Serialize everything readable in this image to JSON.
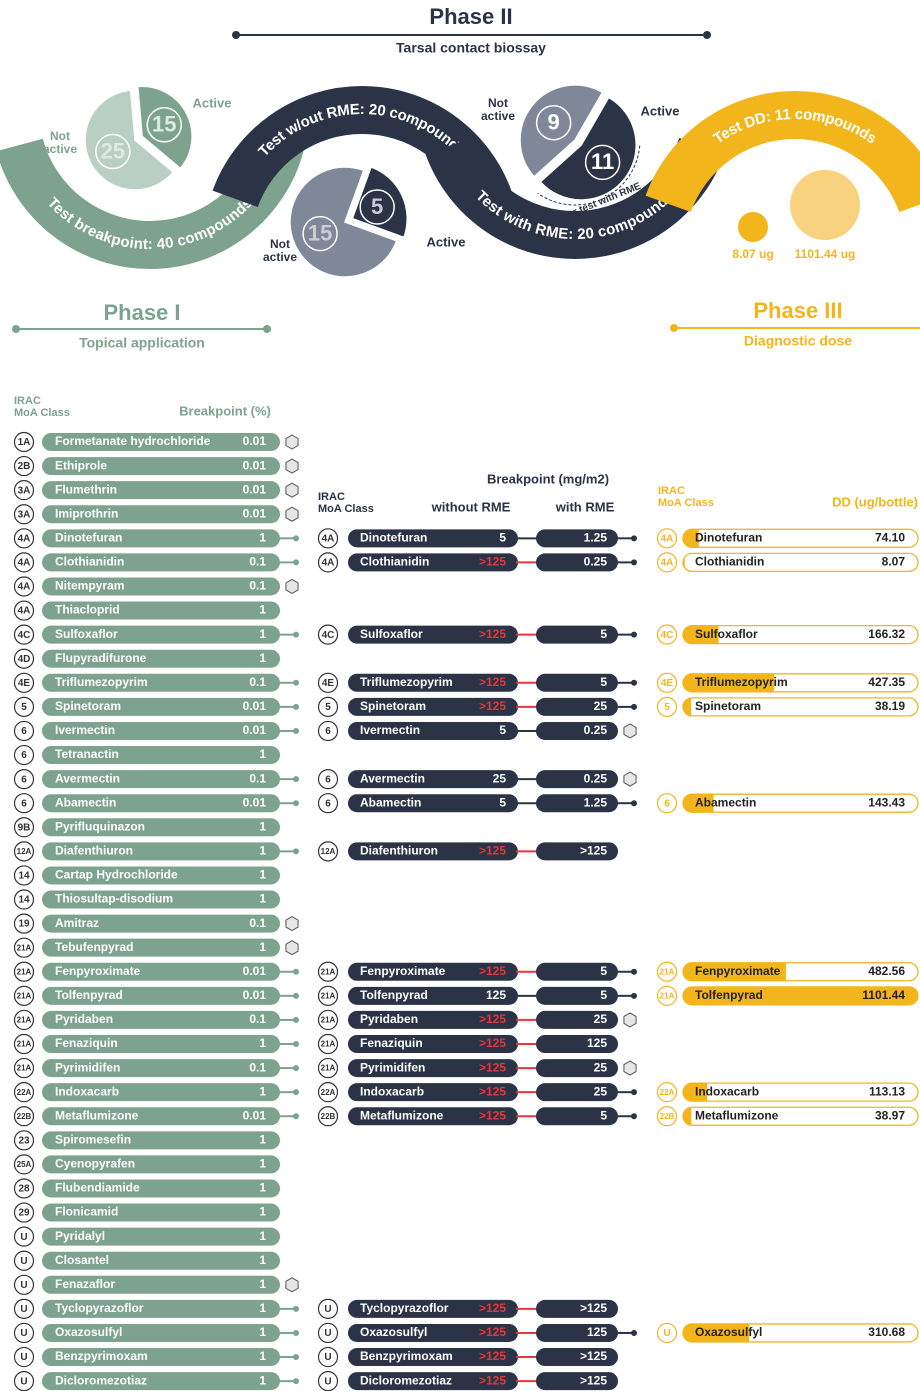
{
  "phase2": {
    "title": "Phase II",
    "subtitle": "Tarsal contact biossay"
  },
  "phase1": {
    "title": "Phase I",
    "subtitle": "Topical application"
  },
  "phase3": {
    "title": "Phase III",
    "subtitle": "Diagnostic dose"
  },
  "ribbons": [
    "Test breakpoint: 40 compounds",
    "Test w/out RME: 20 compounds",
    "Test with RME: 20 compounds",
    "Test DD: 11 compounds"
  ],
  "pies": [
    {
      "active": 15,
      "not_active": 25,
      "active_label": "Active",
      "not_active_label": [
        "Not",
        "active"
      ]
    },
    {
      "active": 5,
      "not_active": 15,
      "active_label": "Active",
      "not_active_label": [
        "Not",
        "active"
      ]
    },
    {
      "active": 11,
      "not_active": 9,
      "active_label": "Active",
      "not_active_label": [
        "Not",
        "active"
      ],
      "note": "After test with RME"
    }
  ],
  "dd_examples": [
    "8.07 ug",
    "1101.44 ug"
  ],
  "table1": {
    "header_class": [
      "IRAC",
      "MoA Class"
    ],
    "header_value": "Breakpoint (%)",
    "rows": [
      {
        "class": "1A",
        "name": "Formetanate hydrochloride",
        "value": 0.01,
        "hex": true
      },
      {
        "class": "2B",
        "name": "Ethiprole",
        "value": 0.01,
        "hex": true
      },
      {
        "class": "3A",
        "name": "Flumethrin",
        "value": 0.01,
        "hex": true
      },
      {
        "class": "3A",
        "name": "Imiprothrin",
        "value": 0.01,
        "hex": true
      },
      {
        "class": "4A",
        "name": "Dinotefuran",
        "value": 1
      },
      {
        "class": "4A",
        "name": "Clothianidin",
        "value": 0.1
      },
      {
        "class": "4A",
        "name": "Nitempyram",
        "value": 0.1,
        "hex": true
      },
      {
        "class": "4A",
        "name": "Thiacloprid",
        "value": 1
      },
      {
        "class": "4C",
        "name": "Sulfoxaflor",
        "value": 1
      },
      {
        "class": "4D",
        "name": "Flupyradifurone",
        "value": 1
      },
      {
        "class": "4E",
        "name": "Triflumezopyrim",
        "value": 0.1
      },
      {
        "class": "5",
        "name": "Spinetoram",
        "value": 0.01
      },
      {
        "class": "6",
        "name": "Ivermectin",
        "value": 0.01
      },
      {
        "class": "6",
        "name": "Tetranactin",
        "value": 1
      },
      {
        "class": "6",
        "name": "Avermectin",
        "value": 0.1
      },
      {
        "class": "6",
        "name": "Abamectin",
        "value": 0.01
      },
      {
        "class": "9B",
        "name": "Pyrifluquinazon",
        "value": 1
      },
      {
        "class": "12A",
        "name": "Diafenthiuron",
        "value": 1
      },
      {
        "class": "14",
        "name": "Cartap Hydrochloride",
        "value": 1
      },
      {
        "class": "14",
        "name": "Thiosultap-disodium",
        "value": 1
      },
      {
        "class": "19",
        "name": "Amitraz",
        "value": 0.1,
        "hex": true
      },
      {
        "class": "21A",
        "name": "Tebufenpyrad",
        "value": 1,
        "hex": true
      },
      {
        "class": "21A",
        "name": "Fenpyroximate",
        "value": 0.01
      },
      {
        "class": "21A",
        "name": "Tolfenpyrad",
        "value": 0.01
      },
      {
        "class": "21A",
        "name": "Pyridaben",
        "value": 0.1
      },
      {
        "class": "21A",
        "name": "Fenaziquin",
        "value": 1
      },
      {
        "class": "21A",
        "name": "Pyrimidifen",
        "value": 0.1
      },
      {
        "class": "22A",
        "name": "Indoxacarb",
        "value": 1
      },
      {
        "class": "22B",
        "name": "Metaflumizone",
        "value": 0.01
      },
      {
        "class": "23",
        "name": "Spiromesefin",
        "value": 1
      },
      {
        "class": "25A",
        "name": "Cyenopyrafen",
        "value": 1
      },
      {
        "class": "28",
        "name": "Flubendiamide",
        "value": 1
      },
      {
        "class": "29",
        "name": "Flonicamid",
        "value": 1
      },
      {
        "class": "U",
        "name": "Pyridalyl",
        "value": 1
      },
      {
        "class": "U",
        "name": "Closantel",
        "value": 1
      },
      {
        "class": "U",
        "name": "Fenazaflor",
        "value": 1,
        "hex": true
      },
      {
        "class": "U",
        "name": "Tyclopyrazoflor",
        "value": 1
      },
      {
        "class": "U",
        "name": "Oxazosulfyl",
        "value": 1
      },
      {
        "class": "U",
        "name": "Benzpyrimoxam",
        "value": 1
      },
      {
        "class": "U",
        "name": "Dicloromezotiaz",
        "value": 1
      }
    ]
  },
  "table2": {
    "header": "Breakpoint (mg/m2)",
    "header_class": [
      "IRAC",
      "MoA Class"
    ],
    "header_without": "without RME",
    "header_with": "with RME",
    "rows": [
      {
        "class": "4A",
        "name": "Dinotefuran",
        "without": 5,
        "with": 1.25
      },
      {
        "class": "4A",
        "name": "Clothianidin",
        "without": ">125",
        "with": 0.25
      },
      {
        "class": "4C",
        "name": "Sulfoxaflor",
        "without": ">125",
        "with": 5
      },
      {
        "class": "4E",
        "name": "Triflumezopyrim",
        "without": ">125",
        "with": 5
      },
      {
        "class": "5",
        "name": "Spinetoram",
        "without": ">125",
        "with": 25
      },
      {
        "class": "6",
        "name": "Ivermectin",
        "without": 5,
        "with": 0.25,
        "hex": true
      },
      {
        "class": "6",
        "name": "Avermectin",
        "without": 25,
        "with": 0.25,
        "hex": true
      },
      {
        "class": "6",
        "name": "Abamectin",
        "without": 5,
        "with": 1.25
      },
      {
        "class": "12A",
        "name": "Diafenthiuron",
        "without": ">125",
        "with": ">125"
      },
      {
        "class": "21A",
        "name": "Fenpyroximate",
        "without": ">125",
        "with": 5
      },
      {
        "class": "21A",
        "name": "Tolfenpyrad",
        "without": 125,
        "with": 5
      },
      {
        "class": "21A",
        "name": "Pyridaben",
        "without": ">125",
        "with": 25,
        "hex": true
      },
      {
        "class": "21A",
        "name": "Fenaziquin",
        "without": ">125",
        "with": 125
      },
      {
        "class": "21A",
        "name": "Pyrimidifen",
        "without": ">125",
        "with": 25,
        "hex": true
      },
      {
        "class": "22A",
        "name": "Indoxacarb",
        "without": ">125",
        "with": 25
      },
      {
        "class": "22B",
        "name": "Metaflumizone",
        "without": ">125",
        "with": 5
      },
      {
        "class": "U",
        "name": "Tyclopyrazoflor",
        "without": ">125",
        "with": ">125"
      },
      {
        "class": "U",
        "name": "Oxazosulfyl",
        "without": ">125",
        "with": 125
      },
      {
        "class": "U",
        "name": "Benzpyrimoxam",
        "without": ">125",
        "with": ">125"
      },
      {
        "class": "U",
        "name": "Dicloromezotiaz",
        "without": ">125",
        "with": ">125"
      }
    ]
  },
  "table3": {
    "header_class": [
      "IRAC",
      "MoA Class"
    ],
    "header_value": "DD (ug/bottle)",
    "rows": [
      {
        "class": "4A",
        "name": "Dinotefuran",
        "value": 74.1,
        "value_label": "74.10"
      },
      {
        "class": "4A",
        "name": "Clothianidin",
        "value": 8.07,
        "value_label": "8.07"
      },
      {
        "class": "4C",
        "name": "Sulfoxaflor",
        "value": 166.32,
        "value_label": "166.32"
      },
      {
        "class": "4E",
        "name": "Triflumezopyrim",
        "value": 427.35,
        "value_label": "427.35"
      },
      {
        "class": "5",
        "name": "Spinetoram",
        "value": 38.19,
        "value_label": "38.19"
      },
      {
        "class": "6",
        "name": "Abamectin",
        "value": 143.43,
        "value_label": "143.43"
      },
      {
        "class": "21A",
        "name": "Fenpyroximate",
        "value": 482.56,
        "value_label": "482.56"
      },
      {
        "class": "21A",
        "name": "Tolfenpyrad",
        "value": 1101.44,
        "value_label": "1101.44"
      },
      {
        "class": "22A",
        "name": "Indoxacarb",
        "value": 113.13,
        "value_label": "113.13"
      },
      {
        "class": "22B",
        "name": "Metaflumizone",
        "value": 38.97,
        "value_label": "38.97"
      },
      {
        "class": "U",
        "name": "Oxazosulfyl",
        "value": 310.68,
        "value_label": "310.68"
      }
    ]
  }
}
